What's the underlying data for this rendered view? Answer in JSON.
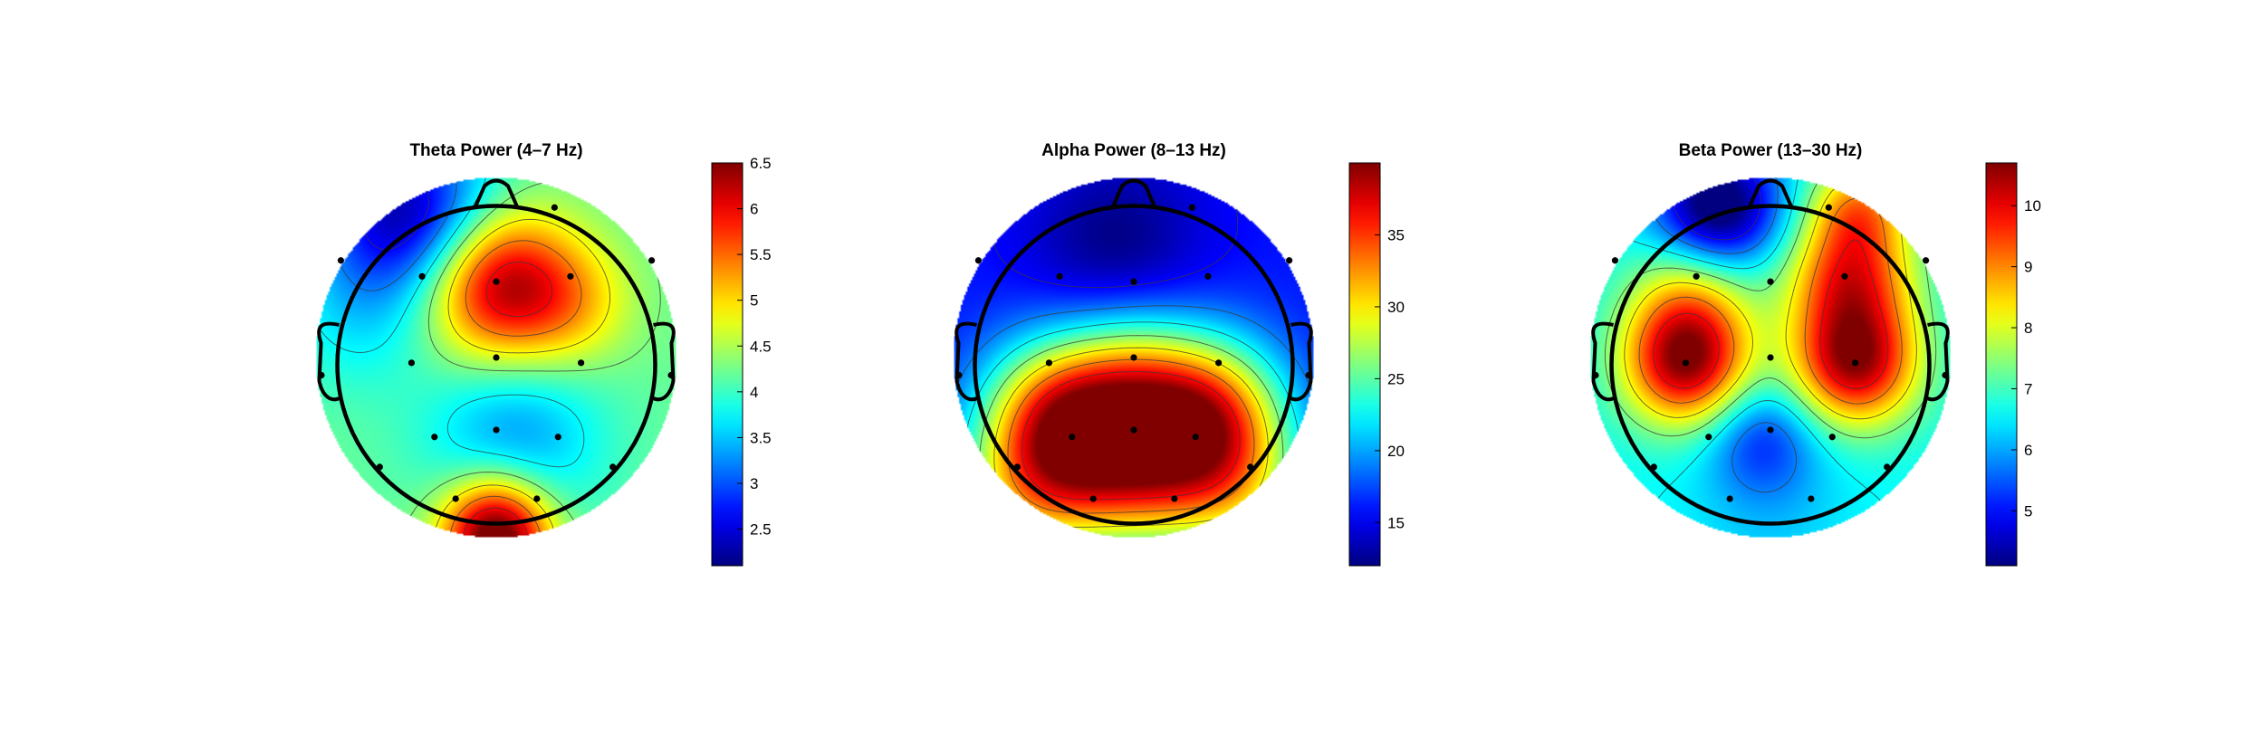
{
  "chart_data": [
    {
      "type": "heatmap",
      "title": "Theta Power (4–7 Hz)",
      "colorbar": {
        "range": [
          2.1,
          6.5
        ],
        "ticks": [
          "6.5",
          "6",
          "5.5",
          "5",
          "4.5",
          "4",
          "3.5",
          "3",
          "2.5"
        ],
        "colormap": "jet"
      },
      "electrodes": [
        {
          "x": 0.33,
          "y": -0.85
        },
        {
          "x": -0.88,
          "y": -0.55
        },
        {
          "x": 0.88,
          "y": -0.55
        },
        {
          "x": -0.42,
          "y": -0.46
        },
        {
          "x": 0.0,
          "y": -0.43
        },
        {
          "x": 0.42,
          "y": -0.46
        },
        {
          "x": -0.48,
          "y": 0.03
        },
        {
          "x": 0.0,
          "y": 0.0
        },
        {
          "x": 0.48,
          "y": 0.03
        },
        {
          "x": -0.99,
          "y": 0.1
        },
        {
          "x": 0.99,
          "y": 0.1
        },
        {
          "x": -0.35,
          "y": 0.45
        },
        {
          "x": 0.0,
          "y": 0.41
        },
        {
          "x": 0.35,
          "y": 0.45
        },
        {
          "x": -0.66,
          "y": 0.62
        },
        {
          "x": 0.66,
          "y": 0.62
        },
        {
          "x": -0.23,
          "y": 0.8
        },
        {
          "x": 0.23,
          "y": 0.8
        }
      ],
      "field": {
        "base": 4.2,
        "features": [
          {
            "x": 0.0,
            "y": -0.42,
            "amp": 2.2,
            "s": 0.3
          },
          {
            "x": 0.42,
            "y": -0.3,
            "amp": 0.7,
            "s": 0.25
          },
          {
            "x": -0.5,
            "y": -0.8,
            "amp": -2.0,
            "s": 0.35
          },
          {
            "x": 0.1,
            "y": 0.45,
            "amp": -0.9,
            "s": 0.35
          },
          {
            "x": -0.8,
            "y": -0.2,
            "amp": -0.4,
            "s": 0.3
          },
          {
            "x": 0.0,
            "y": 1.05,
            "amp": 2.4,
            "s": 0.22
          },
          {
            "x": 0.0,
            "y": 0.85,
            "amp": 0.6,
            "s": 0.2
          }
        ]
      }
    },
    {
      "type": "heatmap",
      "title": "Alpha Power (8–13 Hz)",
      "colorbar": {
        "range": [
          12,
          40
        ],
        "ticks": [
          "35",
          "30",
          "25",
          "20",
          "15"
        ],
        "colormap": "jet"
      },
      "electrodes": [
        {
          "x": 0.33,
          "y": -0.85
        },
        {
          "x": -0.88,
          "y": -0.55
        },
        {
          "x": 0.88,
          "y": -0.55
        },
        {
          "x": -0.42,
          "y": -0.46
        },
        {
          "x": 0.0,
          "y": -0.43
        },
        {
          "x": 0.42,
          "y": -0.46
        },
        {
          "x": -0.48,
          "y": 0.03
        },
        {
          "x": 0.0,
          "y": 0.0
        },
        {
          "x": 0.48,
          "y": 0.03
        },
        {
          "x": -0.99,
          "y": 0.1
        },
        {
          "x": 0.99,
          "y": 0.1
        },
        {
          "x": -0.35,
          "y": 0.45
        },
        {
          "x": 0.0,
          "y": 0.41
        },
        {
          "x": 0.35,
          "y": 0.45
        },
        {
          "x": -0.66,
          "y": 0.62
        },
        {
          "x": 0.66,
          "y": 0.62
        },
        {
          "x": -0.23,
          "y": 0.8
        },
        {
          "x": 0.23,
          "y": 0.8
        }
      ],
      "field": {
        "base": 16,
        "features": [
          {
            "x": 0.0,
            "y": 0.5,
            "amp": 22,
            "s": 0.38
          },
          {
            "x": -0.45,
            "y": 0.3,
            "amp": 12,
            "s": 0.3
          },
          {
            "x": 0.45,
            "y": 0.3,
            "amp": 12,
            "s": 0.3
          },
          {
            "x": -0.6,
            "y": 0.75,
            "amp": 10,
            "s": 0.3
          },
          {
            "x": 0.6,
            "y": 0.75,
            "amp": 8,
            "s": 0.3
          },
          {
            "x": -0.1,
            "y": -0.65,
            "amp": -4,
            "s": 0.35
          },
          {
            "x": 0.0,
            "y": 0.0,
            "amp": 3,
            "s": 0.25
          }
        ]
      }
    },
    {
      "type": "heatmap",
      "title": "Beta Power (13–30 Hz)",
      "colorbar": {
        "range": [
          4.1,
          10.7
        ],
        "ticks": [
          "10",
          "9",
          "8",
          "7",
          "6",
          "5"
        ],
        "colormap": "jet"
      },
      "electrodes": [
        {
          "x": 0.33,
          "y": -0.85
        },
        {
          "x": -0.88,
          "y": -0.55
        },
        {
          "x": 0.88,
          "y": -0.55
        },
        {
          "x": -0.42,
          "y": -0.46
        },
        {
          "x": 0.0,
          "y": -0.43
        },
        {
          "x": 0.42,
          "y": -0.46
        },
        {
          "x": -0.48,
          "y": 0.03
        },
        {
          "x": 0.0,
          "y": 0.0
        },
        {
          "x": 0.48,
          "y": 0.03
        },
        {
          "x": -0.99,
          "y": 0.1
        },
        {
          "x": 0.99,
          "y": 0.1
        },
        {
          "x": -0.35,
          "y": 0.45
        },
        {
          "x": 0.0,
          "y": 0.41
        },
        {
          "x": 0.35,
          "y": 0.45
        },
        {
          "x": -0.66,
          "y": 0.62
        },
        {
          "x": 0.66,
          "y": 0.62
        },
        {
          "x": -0.23,
          "y": 0.8
        },
        {
          "x": 0.23,
          "y": 0.8
        }
      ],
      "field": {
        "base": 6.6,
        "features": [
          {
            "x": -0.48,
            "y": 0.03,
            "amp": 3.8,
            "s": 0.25
          },
          {
            "x": 0.48,
            "y": 0.03,
            "amp": 3.8,
            "s": 0.25
          },
          {
            "x": 0.45,
            "y": -0.45,
            "amp": 2.8,
            "s": 0.25
          },
          {
            "x": -0.45,
            "y": -0.35,
            "amp": 1.5,
            "s": 0.25
          },
          {
            "x": -0.05,
            "y": 0.45,
            "amp": -1.3,
            "s": 0.22
          },
          {
            "x": -0.3,
            "y": -0.85,
            "amp": -3.0,
            "s": 0.25
          },
          {
            "x": 0.5,
            "y": -0.85,
            "amp": 2.0,
            "s": 0.2
          },
          {
            "x": 0.0,
            "y": 0.8,
            "amp": -0.4,
            "s": 0.3
          }
        ]
      }
    }
  ]
}
